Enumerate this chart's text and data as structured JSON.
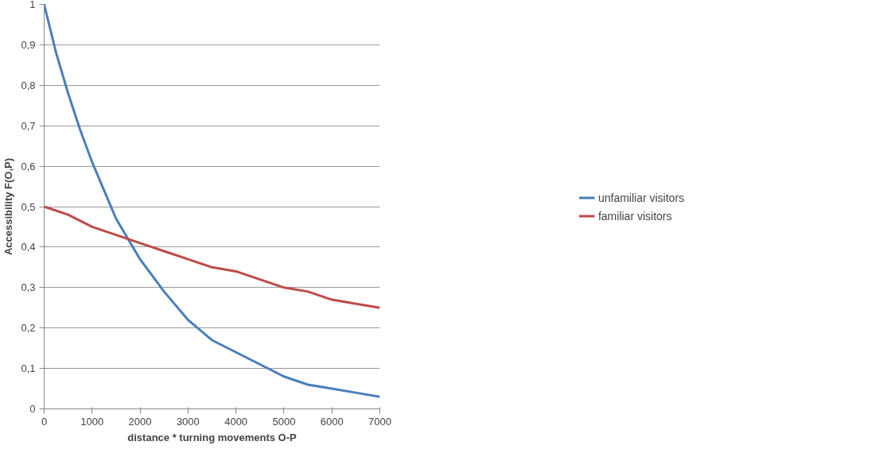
{
  "chart_data": {
    "type": "line",
    "xlabel": "distance * turning movements O-P",
    "ylabel": "Accessibility F(O,P)",
    "series": [
      {
        "name": "unfamiliar visitors",
        "color": "#4a7ebb",
        "x": [
          0,
          250,
          500,
          750,
          1000,
          1250,
          1500,
          1750,
          2000,
          2500,
          3000,
          3500,
          4000,
          4500,
          5000,
          5500,
          6000,
          6500,
          7000
        ],
        "values": [
          1,
          0.88,
          0.78,
          0.69,
          0.61,
          0.54,
          0.47,
          0.42,
          0.37,
          0.29,
          0.22,
          0.17,
          0.14,
          0.11,
          0.08,
          0.06,
          0.05,
          0.04,
          0.03
        ]
      },
      {
        "name": "familiar visitors",
        "color": "#be4b48",
        "x": [
          0,
          500,
          1000,
          1500,
          2000,
          2500,
          3000,
          3500,
          4000,
          4500,
          5000,
          5500,
          6000,
          6500,
          7000
        ],
        "values": [
          0.5,
          0.48,
          0.45,
          0.43,
          0.41,
          0.39,
          0.37,
          0.35,
          0.34,
          0.32,
          0.3,
          0.29,
          0.27,
          0.26,
          0.25
        ]
      }
    ],
    "xlim": [
      0,
      7000
    ],
    "xticks": [
      0,
      1000,
      2000,
      3000,
      4000,
      5000,
      6000,
      7000
    ],
    "ylim": [
      0,
      1
    ],
    "yticks": [
      0,
      {
        "value": 0.1,
        "label": "0,1"
      },
      {
        "value": 0.2,
        "label": "0,2"
      },
      {
        "value": 0.3,
        "label": "0,3"
      },
      {
        "value": 0.4,
        "label": "0,4"
      },
      {
        "value": 0.5,
        "label": "0,5"
      },
      {
        "value": 0.6,
        "label": "0,6"
      },
      {
        "value": 0.7,
        "label": "0,7"
      },
      {
        "value": 0.8,
        "label": "0,8"
      },
      {
        "value": 0.9,
        "label": "0,9"
      },
      1
    ],
    "grid": "y",
    "legend": "right",
    "line_style": "solid",
    "marker": "none"
  }
}
